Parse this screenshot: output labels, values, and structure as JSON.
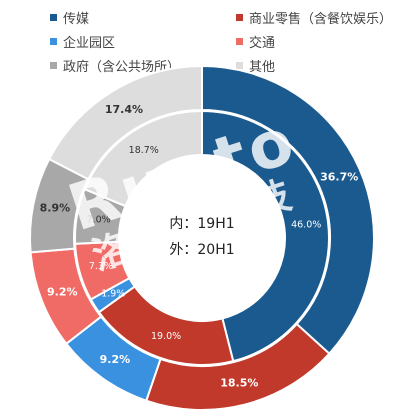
{
  "legend": [
    {
      "label": "传媒",
      "color": "#1a5a8e"
    },
    {
      "label": "商业零售（含餐饮娱乐）",
      "color": "#c0392b"
    },
    {
      "label": "企业园区",
      "color": "#3a91e0"
    },
    {
      "label": "交通",
      "color": "#f06a66"
    },
    {
      "label": "政府（含公共场所）",
      "color": "#a8a8a8"
    },
    {
      "label": "其他",
      "color": "#dddddd"
    }
  ],
  "center": {
    "inner_label": "内：19H1",
    "outer_label": "外：20H1"
  },
  "watermark": {
    "brand": "Runto",
    "cn": "洛图科技"
  },
  "chart_data": {
    "type": "pie",
    "subtype": "double-donut",
    "categories": [
      "传媒",
      "商业零售（含餐饮娱乐）",
      "企业园区",
      "交通",
      "政府（含公共场所）",
      "其他"
    ],
    "series": [
      {
        "name": "19H1",
        "ring": "inner",
        "values": [
          46.0,
          19.0,
          1.9,
          7.3,
          7.0,
          18.7
        ],
        "labels": [
          "46.0%",
          "19.0%",
          "1.9%",
          "7.3%",
          "7.0%",
          "18.7%"
        ]
      },
      {
        "name": "20H1",
        "ring": "outer",
        "values": [
          36.7,
          18.5,
          9.2,
          9.2,
          8.9,
          17.4
        ],
        "labels": [
          "36.7%",
          "18.5%",
          "9.2%",
          "9.2%",
          "8.9%",
          "17.4%"
        ]
      }
    ],
    "colors": [
      "#1a5a8e",
      "#c0392b",
      "#3a91e0",
      "#f06a66",
      "#a8a8a8",
      "#dddddd"
    ],
    "label_colors": [
      "#ffffff",
      "#ffffff",
      "#ffffff",
      "#ffffff",
      "#333333",
      "#333333"
    ],
    "start": "12 o'clock",
    "direction": "clockwise",
    "legend_position": "top"
  }
}
